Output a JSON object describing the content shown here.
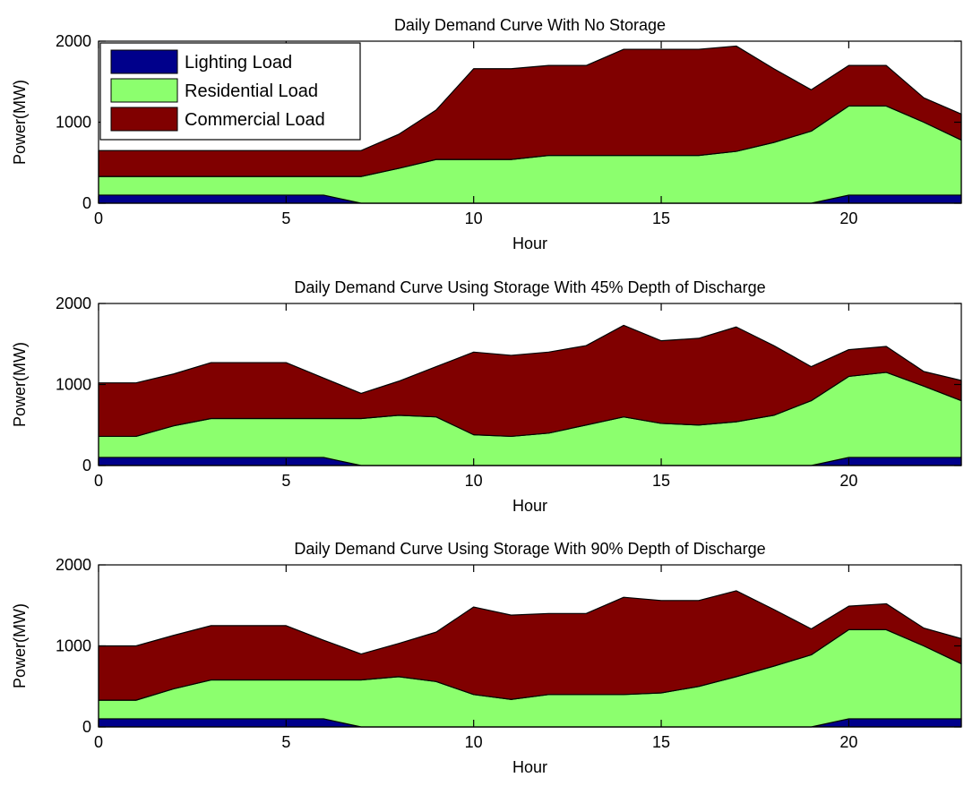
{
  "colors": {
    "lighting": "#00008B",
    "residential": "#8CFF6E",
    "commercial": "#800000",
    "axis": "#000000"
  },
  "legend": {
    "position": "top-left",
    "items": [
      "Lighting Load",
      "Residential Load",
      "Commercial Load"
    ]
  },
  "chart_data": [
    {
      "type": "area",
      "stacked": true,
      "title": "Daily Demand Curve With No Storage",
      "xlabel": "Hour",
      "ylabel": "Power(MW)",
      "xlim": [
        0,
        23
      ],
      "ylim": [
        0,
        2000
      ],
      "xticks": [
        0,
        5,
        10,
        15,
        20
      ],
      "yticks": [
        0,
        1000,
        2000
      ],
      "grid": false,
      "x": [
        0,
        1,
        2,
        3,
        4,
        5,
        6,
        7,
        8,
        9,
        10,
        11,
        12,
        13,
        14,
        15,
        16,
        17,
        18,
        19,
        20,
        21,
        22,
        23
      ],
      "series": [
        {
          "name": "Lighting Load",
          "color_key": "lighting",
          "values": [
            100,
            100,
            100,
            100,
            100,
            100,
            100,
            0,
            0,
            0,
            0,
            0,
            0,
            0,
            0,
            0,
            0,
            0,
            0,
            0,
            100,
            100,
            100,
            100
          ]
        },
        {
          "name": "Residential Load",
          "color_key": "residential",
          "values": [
            230,
            230,
            230,
            230,
            230,
            230,
            230,
            330,
            430,
            540,
            540,
            540,
            590,
            590,
            590,
            590,
            590,
            640,
            750,
            890,
            1100,
            1100,
            900,
            680
          ]
        },
        {
          "name": "Commercial Load",
          "color_key": "commercial",
          "values": [
            320,
            320,
            320,
            320,
            320,
            320,
            320,
            320,
            420,
            610,
            1120,
            1120,
            1110,
            1110,
            1310,
            1310,
            1310,
            1300,
            910,
            510,
            500,
            500,
            300,
            320
          ]
        }
      ]
    },
    {
      "type": "area",
      "stacked": true,
      "title": "Daily Demand Curve Using Storage With 45% Depth of Discharge",
      "xlabel": "Hour",
      "ylabel": "Power(MW)",
      "xlim": [
        0,
        23
      ],
      "ylim": [
        0,
        2000
      ],
      "xticks": [
        0,
        5,
        10,
        15,
        20
      ],
      "yticks": [
        0,
        1000,
        2000
      ],
      "grid": false,
      "x": [
        0,
        1,
        2,
        3,
        4,
        5,
        6,
        7,
        8,
        9,
        10,
        11,
        12,
        13,
        14,
        15,
        16,
        17,
        18,
        19,
        20,
        21,
        22,
        23
      ],
      "series": [
        {
          "name": "Lighting Load",
          "color_key": "lighting",
          "values": [
            100,
            100,
            100,
            100,
            100,
            100,
            100,
            0,
            0,
            0,
            0,
            0,
            0,
            0,
            0,
            0,
            0,
            0,
            0,
            0,
            100,
            100,
            100,
            100
          ]
        },
        {
          "name": "Residential Load",
          "color_key": "residential",
          "values": [
            260,
            260,
            390,
            480,
            480,
            480,
            480,
            580,
            620,
            600,
            380,
            360,
            400,
            500,
            600,
            520,
            500,
            540,
            620,
            800,
            1000,
            1050,
            880,
            700
          ]
        },
        {
          "name": "Commercial Load",
          "color_key": "commercial",
          "values": [
            660,
            660,
            640,
            690,
            690,
            690,
            500,
            310,
            420,
            620,
            1020,
            1000,
            1000,
            980,
            1130,
            1020,
            1070,
            1170,
            860,
            420,
            330,
            320,
            180,
            250
          ]
        }
      ]
    },
    {
      "type": "area",
      "stacked": true,
      "title": "Daily Demand Curve Using Storage With 90% Depth of Discharge",
      "xlabel": "Hour",
      "ylabel": "Power(MW)",
      "xlim": [
        0,
        23
      ],
      "ylim": [
        0,
        2000
      ],
      "xticks": [
        0,
        5,
        10,
        15,
        20
      ],
      "yticks": [
        0,
        1000,
        2000
      ],
      "grid": false,
      "x": [
        0,
        1,
        2,
        3,
        4,
        5,
        6,
        7,
        8,
        9,
        10,
        11,
        12,
        13,
        14,
        15,
        16,
        17,
        18,
        19,
        20,
        21,
        22,
        23
      ],
      "series": [
        {
          "name": "Lighting Load",
          "color_key": "lighting",
          "values": [
            100,
            100,
            100,
            100,
            100,
            100,
            100,
            0,
            0,
            0,
            0,
            0,
            0,
            0,
            0,
            0,
            0,
            0,
            0,
            0,
            100,
            100,
            100,
            100
          ]
        },
        {
          "name": "Residential Load",
          "color_key": "residential",
          "values": [
            230,
            230,
            370,
            480,
            480,
            480,
            480,
            580,
            620,
            560,
            400,
            340,
            400,
            400,
            400,
            420,
            500,
            620,
            750,
            890,
            1100,
            1100,
            900,
            680
          ]
        },
        {
          "name": "Commercial Load",
          "color_key": "commercial",
          "values": [
            670,
            670,
            660,
            670,
            670,
            670,
            490,
            320,
            410,
            610,
            1080,
            1040,
            1000,
            1000,
            1200,
            1140,
            1060,
            1060,
            700,
            320,
            290,
            320,
            220,
            310
          ]
        }
      ]
    }
  ]
}
